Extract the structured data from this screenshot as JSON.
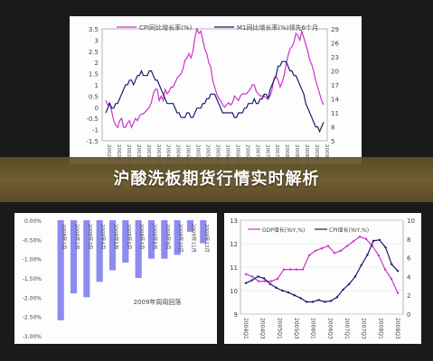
{
  "banner": {
    "title": "沪酸洗板期货行情实时解析"
  },
  "chart_data": [
    {
      "type": "line",
      "legend": [
        "CPI同比增长率(%)",
        "M1同比增长率(%)领先6个月"
      ],
      "yleft_ticks": [
        "-1.5",
        "-1",
        "-0.5",
        "0",
        "0.5",
        "1",
        "1.5",
        "2",
        "2.5",
        "3",
        "3.5"
      ],
      "yright_ticks": [
        "5",
        "8",
        "11",
        "14",
        "17",
        "20",
        "23",
        "26",
        "29"
      ],
      "x_ticks": [
        "2002-01月",
        "2002-05月",
        "2002-09月",
        "2003-01月",
        "2003-05月",
        "2003-09月",
        "2004-01月",
        "2004-05月",
        "2004-09月",
        "2005-01月",
        "2005-05月",
        "2005-09月",
        "2006-01月",
        "2006-05月",
        "2006-09月",
        "2007-01月",
        "2007-05月",
        "2007-09月",
        "2008-01月",
        "2008-05月",
        "2008-09月",
        "2009-01月",
        "2009-05月"
      ],
      "series": [
        {
          "name": "CPI同比增长率(%)",
          "color": "#cc33cc",
          "values": [
            0.3,
            0.1,
            0.2,
            -0.2,
            -0.6,
            -0.8,
            -0.9,
            -0.6,
            -0.5,
            -0.9,
            -0.9,
            -0.7,
            -0.6,
            -0.9,
            -0.7,
            -0.5,
            -0.6,
            -0.4,
            -0.3,
            -0.3,
            -0.2,
            -0.1,
            0.0,
            0.2,
            0.6,
            0.8,
            0.8,
            0.3,
            0.5,
            0.3,
            0.8,
            0.6,
            0.7,
            0.9,
            0.9,
            1.1,
            1.3,
            1.4,
            1.5,
            1.7,
            2.1,
            2.2,
            2.4,
            2.2,
            2.5,
            3.1,
            3.5,
            3.3,
            3.4,
            3.0,
            2.6,
            2.4,
            2.0,
            1.8,
            1.2,
            0.9,
            0.6,
            0.4,
            0.3,
            0.1,
            0.0,
            0.1,
            0.2,
            0.1,
            0.2,
            0.5,
            0.4,
            0.3,
            0.5,
            0.6,
            0.6,
            0.6,
            0.7,
            0.8,
            1.0,
            1.0,
            0.7,
            0.6,
            0.5,
            0.5,
            0.5,
            0.4,
            0.4,
            0.5,
            0.8,
            1.3,
            1.4,
            1.2,
            0.9,
            1.1,
            1.4,
            1.9,
            2.3,
            2.6,
            2.7,
            2.9,
            3.3,
            3.2,
            3.0,
            3.4,
            3.1,
            2.8,
            2.5,
            2.1,
            1.9,
            1.6,
            1.2,
            0.9,
            0.6,
            0.3,
            0.1
          ]
        },
        {
          "name": "M1同比增长率(%)领先6个月",
          "color": "#1a1a6e",
          "values": [
            11,
            12,
            13,
            12,
            12,
            13,
            13,
            14,
            15,
            16,
            17,
            17,
            18,
            18,
            17,
            18,
            19,
            19,
            20,
            19,
            19,
            19,
            20,
            20,
            19,
            18,
            18,
            17,
            16,
            15,
            14,
            13,
            13,
            13,
            13,
            12,
            11,
            11,
            10,
            10,
            10,
            11,
            11,
            10,
            10,
            11,
            12,
            12,
            12,
            13,
            13,
            14,
            14,
            15,
            15,
            15,
            14,
            13,
            12,
            11,
            11,
            11,
            11,
            11,
            11,
            10,
            10,
            11,
            11,
            11,
            12,
            12,
            13,
            13,
            13,
            14,
            13,
            13,
            14,
            14,
            15,
            15,
            14,
            16,
            17,
            18,
            19,
            21,
            21,
            22,
            22,
            22,
            21,
            20,
            20,
            19,
            19,
            18,
            17,
            16,
            15,
            13,
            12,
            11,
            10,
            9,
            8,
            8,
            7,
            8,
            9
          ]
        }
      ]
    },
    {
      "type": "bar",
      "title": "2009年周周回落",
      "categories": [
        "2008年1月",
        "2008年2月",
        "2008年3月",
        "2008年4月",
        "2008年5月",
        "2008年6月",
        "2008年7月",
        "2008年8月",
        "2008年9月",
        "2008年10月",
        "2008年11月",
        "2008年12月"
      ],
      "values": [
        -2.6,
        -1.9,
        -2.0,
        -1.6,
        -1.3,
        -1.1,
        -1.5,
        -1.0,
        -1.0,
        -0.9,
        -0.3,
        -0.6
      ],
      "ylim": [
        -3.0,
        0.0
      ],
      "y_ticks": [
        "0.00%",
        "-0.50%",
        "-1.00%",
        "-1.50%",
        "-2.00%",
        "-2.50%",
        "-3.00%"
      ],
      "color": "#8c8cf0"
    },
    {
      "type": "line",
      "legend": [
        "GDP增长(YoY,%)",
        "CPI增长(YoY,%)"
      ],
      "yleft_ticks": [
        "9",
        "10",
        "11",
        "12",
        "13"
      ],
      "yright_ticks": [
        "0",
        "2",
        "4",
        "6",
        "8",
        "10"
      ],
      "x_ticks": [
        "2004Q1",
        "2004Q3",
        "2005Q1",
        "2005Q3",
        "2006Q1",
        "2006Q3",
        "2007Q1",
        "2007Q3",
        "2008Q1",
        "2008Q3"
      ],
      "series": [
        {
          "name": "GDP增长(YoY,%)",
          "color": "#cc33cc",
          "values": [
            10.7,
            10.6,
            10.4,
            10.4,
            10.4,
            10.5,
            10.9,
            10.9,
            10.9,
            10.9,
            11.5,
            11.7,
            11.8,
            11.9,
            11.6,
            11.7,
            11.9,
            12.1,
            12.3,
            12.2,
            11.9,
            11.5,
            10.9,
            10.5,
            9.9
          ]
        },
        {
          "name": "CPI增长(YoY,%)",
          "color": "#1a1a6e",
          "values": [
            3.3,
            3.6,
            4.0,
            3.8,
            3.2,
            2.8,
            2.5,
            2.3,
            2.0,
            1.7,
            1.3,
            1.3,
            1.5,
            1.3,
            1.4,
            1.8,
            2.6,
            3.2,
            4.0,
            5.2,
            6.3,
            7.8,
            7.9,
            7.1,
            5.3,
            4.6
          ]
        }
      ]
    }
  ]
}
